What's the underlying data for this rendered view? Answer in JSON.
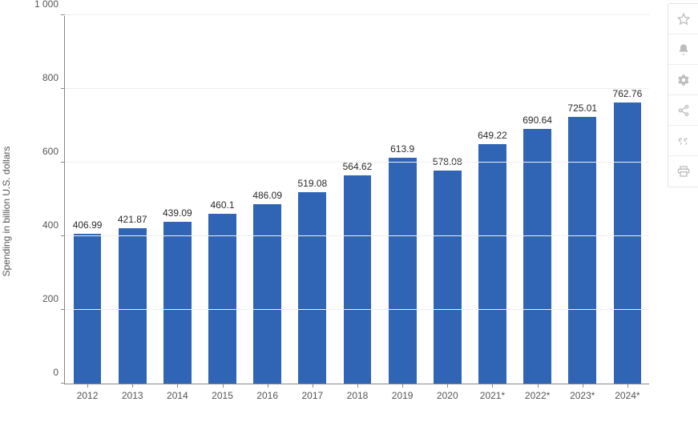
{
  "chart": {
    "type": "bar",
    "y_axis_label": "Spending in billion U.S. dollars",
    "categories": [
      "2012",
      "2013",
      "2014",
      "2015",
      "2016",
      "2017",
      "2018",
      "2019",
      "2020",
      "2021*",
      "2022*",
      "2023*",
      "2024*"
    ],
    "values": [
      406.99,
      421.87,
      439.09,
      460.1,
      486.09,
      519.08,
      564.62,
      613.9,
      578.08,
      649.22,
      690.64,
      725.01,
      762.76
    ],
    "bar_color": "#3065b5",
    "background_color": "#ffffff",
    "grid_color": "#eeeeee",
    "axis_color": "#888888",
    "label_color": "#555555",
    "value_label_color": "#2a2a2a",
    "ylim": [
      0,
      1000
    ],
    "ytick_step": 200,
    "ytick_labels": [
      "0",
      "200",
      "400",
      "600",
      "800",
      "1 000"
    ],
    "bar_width_ratio": 0.62,
    "label_fontsize": 12,
    "value_fontsize": 12
  },
  "toolbar": {
    "items": [
      {
        "name": "star-icon",
        "title": "Favorite"
      },
      {
        "name": "bell-icon",
        "title": "Notify"
      },
      {
        "name": "gear-icon",
        "title": "Settings"
      },
      {
        "name": "share-icon",
        "title": "Share"
      },
      {
        "name": "quote-icon",
        "title": "Citation"
      },
      {
        "name": "print-icon",
        "title": "Print"
      }
    ]
  }
}
